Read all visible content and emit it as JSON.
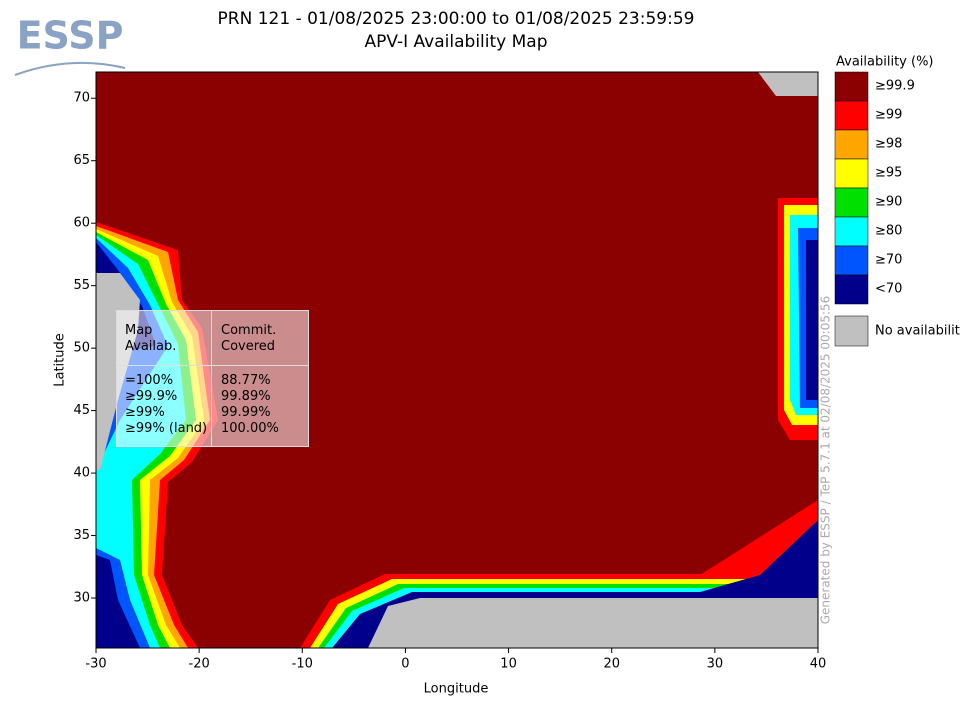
{
  "header": {
    "logo": "ESSP",
    "title": "PRN 121 - 01/08/2025 23:00:00 to 01/08/2025 23:59:59",
    "subtitle": "APV-I Availability Map"
  },
  "map": {
    "xlabel": "Longitude",
    "ylabel": "Latitude",
    "xlim": [
      -30,
      40
    ],
    "ylim": [
      26,
      72.1
    ],
    "xticks": [
      -30,
      -20,
      -10,
      0,
      10,
      20,
      30,
      40
    ],
    "yticks": [
      30,
      35,
      40,
      45,
      50,
      55,
      60,
      65,
      70
    ]
  },
  "legend": {
    "title": "Availability (%)",
    "items": [
      {
        "label": "≥99.9",
        "color": "#8b0000"
      },
      {
        "label": "≥99",
        "color": "#ff0000"
      },
      {
        "label": "≥98",
        "color": "#ffa500"
      },
      {
        "label": "≥95",
        "color": "#ffff00"
      },
      {
        "label": "≥90",
        "color": "#00e000"
      },
      {
        "label": "≥80",
        "color": "#00ffff"
      },
      {
        "label": "≥70",
        "color": "#0055ff"
      },
      {
        "label": "<70",
        "color": "#00008b"
      }
    ],
    "none": {
      "label": "No availability",
      "color": "#c0c0c0"
    }
  },
  "stats": {
    "headers": [
      "Map\nAvailab.",
      "Commit.\nCovered"
    ],
    "rows": [
      [
        "=100%",
        "88.77%"
      ],
      [
        "≥99.9%",
        "99.89%"
      ],
      [
        "≥99%",
        "99.99%"
      ],
      [
        "≥99% (land)",
        "100.00%"
      ]
    ]
  },
  "footer": "Generated by ESSP / TeP 5.7.1 at 02/08/2025 00:05:56"
}
